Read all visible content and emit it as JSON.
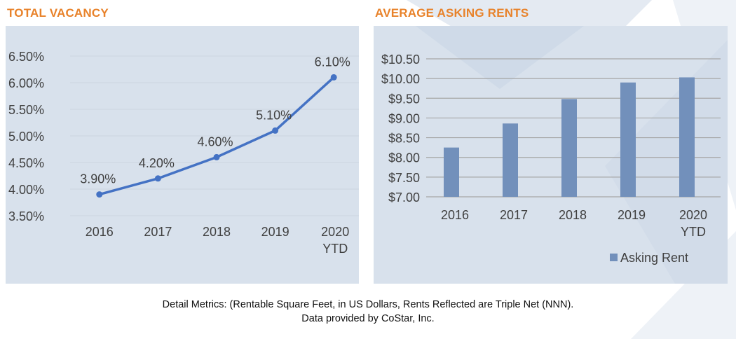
{
  "footer": {
    "line1": "Detail Metrics: (Rentable Square Feet, in US Dollars, Rents Reflected are Triple Net (NNN).",
    "line2": "Data provided by CoStar, Inc."
  },
  "colors": {
    "title": "#e8822a",
    "panel_bg": "#d8e1ec",
    "line": "#4472c4",
    "bar": "#7290bb",
    "grid_left": "#cdd5df",
    "grid_right": "#a6a6a6",
    "text": "#404040"
  },
  "chart_data": [
    {
      "type": "line",
      "title": "TOTAL VACANCY",
      "categories": [
        "2016",
        "2017",
        "2018",
        "2019",
        "2020 YTD"
      ],
      "category_lines": [
        [
          "2016"
        ],
        [
          "2017"
        ],
        [
          "2018"
        ],
        [
          "2019"
        ],
        [
          "2020",
          "YTD"
        ]
      ],
      "values": [
        3.9,
        4.2,
        4.6,
        5.1,
        6.1
      ],
      "data_labels": [
        "3.90%",
        "4.20%",
        "4.60%",
        "5.10%",
        "6.10%"
      ],
      "yticks": [
        3.5,
        4.0,
        4.5,
        5.0,
        5.5,
        6.0,
        6.5
      ],
      "ytick_labels": [
        "3.50%",
        "4.00%",
        "4.50%",
        "5.00%",
        "5.50%",
        "6.00%",
        "6.50%"
      ],
      "ylim": [
        3.5,
        6.5
      ],
      "xlabel": "",
      "ylabel": "",
      "grid": true,
      "legend": null
    },
    {
      "type": "bar",
      "title": "AVERAGE ASKING RENTS",
      "categories": [
        "2016",
        "2017",
        "2018",
        "2019",
        "2020 YTD"
      ],
      "category_lines": [
        [
          "2016"
        ],
        [
          "2017"
        ],
        [
          "2018"
        ],
        [
          "2019"
        ],
        [
          "2020",
          "YTD"
        ]
      ],
      "series": [
        {
          "name": "Asking Rent",
          "values": [
            8.25,
            8.86,
            9.48,
            9.9,
            10.03
          ]
        }
      ],
      "yticks": [
        7.0,
        7.5,
        8.0,
        8.5,
        9.0,
        9.5,
        10.0,
        10.5
      ],
      "ytick_labels": [
        "$7.00",
        "$7.50",
        "$8.00",
        "$8.50",
        "$9.00",
        "$9.50",
        "$10.00",
        "$10.50"
      ],
      "ylim": [
        7.0,
        10.5
      ],
      "xlabel": "",
      "ylabel": "",
      "grid": true,
      "legend": "bottom-right"
    }
  ]
}
